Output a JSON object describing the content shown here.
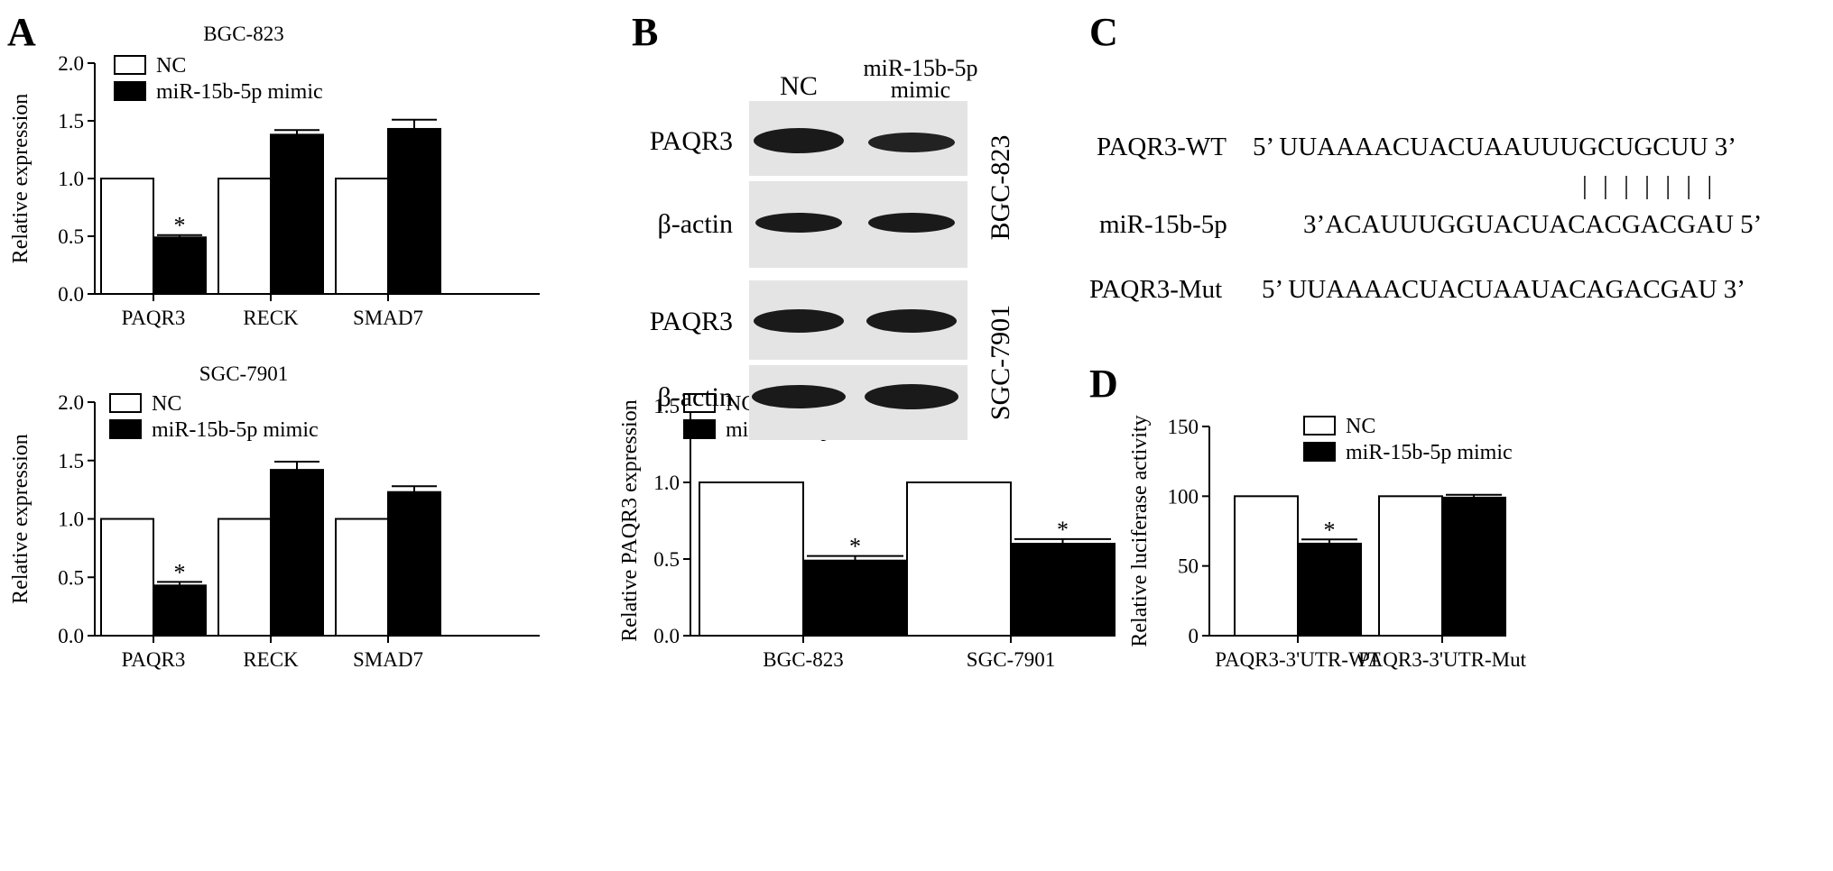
{
  "panels": {
    "A": {
      "letter": "A"
    },
    "B": {
      "letter": "B",
      "blot_columns": [
        "NC",
        "miR-15b-5p mimic"
      ],
      "blot_rows": [
        "PAQR3",
        "β-actin",
        "PAQR3",
        "β-actin"
      ],
      "cell_lines": [
        "BGC-823",
        "SGC-7901"
      ]
    },
    "C": {
      "letter": "C",
      "sequences": [
        {
          "label": "PAQR3-WT",
          "seq": "5’ UUAAAACUACUAAUUUGCUGCUU 3’"
        },
        {
          "label": "miR-15b-5p",
          "seq": "3’ACAUUUGGUACUACACGACGAU 5’"
        },
        {
          "label": "PAQR3-Mut",
          "seq": "5’ UUAAAACUACUAAUACAGACGAU 3’"
        }
      ],
      "pairing_marks": "| | | | | | |"
    },
    "D": {
      "letter": "D"
    }
  },
  "chart_data": [
    {
      "id": "A-top",
      "type": "bar",
      "title": "BGC-823",
      "ylabel": "Relative expression",
      "ylim": [
        0,
        2.0
      ],
      "yticks": [
        "0.0",
        "0.5",
        "1.0",
        "1.5",
        "2.0"
      ],
      "categories": [
        "PAQR3",
        "RECK",
        "SMAD7"
      ],
      "series": [
        {
          "name": "NC",
          "color": "#ffffff",
          "values": [
            1.0,
            1.0,
            1.0
          ],
          "errors": [
            0,
            0,
            0
          ]
        },
        {
          "name": "miR-15b-5p mimic",
          "color": "#000000",
          "values": [
            0.49,
            1.38,
            1.43
          ],
          "errors": [
            0.02,
            0.04,
            0.08
          ]
        }
      ],
      "significance": [
        "*",
        "",
        ""
      ],
      "legend": "top-left"
    },
    {
      "id": "A-bottom",
      "type": "bar",
      "title": "SGC-7901",
      "ylabel": "Relative expression",
      "ylim": [
        0,
        2.0
      ],
      "yticks": [
        "0.0",
        "0.5",
        "1.0",
        "1.5",
        "2.0"
      ],
      "categories": [
        "PAQR3",
        "RECK",
        "SMAD7"
      ],
      "series": [
        {
          "name": "NC",
          "color": "#ffffff",
          "values": [
            1.0,
            1.0,
            1.0
          ],
          "errors": [
            0,
            0,
            0
          ]
        },
        {
          "name": "miR-15b-5p mimic",
          "color": "#000000",
          "values": [
            0.43,
            1.42,
            1.23
          ],
          "errors": [
            0.03,
            0.07,
            0.05
          ]
        }
      ],
      "significance": [
        "*",
        "",
        ""
      ],
      "legend": "top-left"
    },
    {
      "id": "B-bottom",
      "type": "bar",
      "title": "",
      "ylabel": "Relative PAQR3 expression",
      "ylim": [
        0,
        1.5
      ],
      "yticks": [
        "0.0",
        "0.5",
        "1.0",
        "1.5"
      ],
      "categories": [
        "BGC-823",
        "SGC-7901"
      ],
      "series": [
        {
          "name": "NC",
          "color": "#ffffff",
          "values": [
            1.0,
            1.0
          ],
          "errors": [
            0,
            0
          ]
        },
        {
          "name": "miR-15b-5p mimic",
          "color": "#000000",
          "values": [
            0.49,
            0.6
          ],
          "errors": [
            0.03,
            0.03
          ]
        }
      ],
      "significance": [
        "*",
        "*"
      ],
      "legend": "top-left"
    },
    {
      "id": "D",
      "type": "bar",
      "title": "",
      "ylabel": "Relative  luciferase activity",
      "ylim": [
        0,
        150
      ],
      "yticks": [
        "0",
        "50",
        "100",
        "150"
      ],
      "categories": [
        "PAQR3-3'UTR-WT",
        "PAQR3-3'UTR-Mut"
      ],
      "series": [
        {
          "name": "NC",
          "color": "#ffffff",
          "values": [
            100,
            100
          ],
          "errors": [
            0,
            0
          ]
        },
        {
          "name": "miR-15b-5p mimic",
          "color": "#000000",
          "values": [
            66,
            99
          ],
          "errors": [
            3,
            2
          ]
        }
      ],
      "significance": [
        "*",
        ""
      ],
      "legend": "top-left"
    }
  ]
}
